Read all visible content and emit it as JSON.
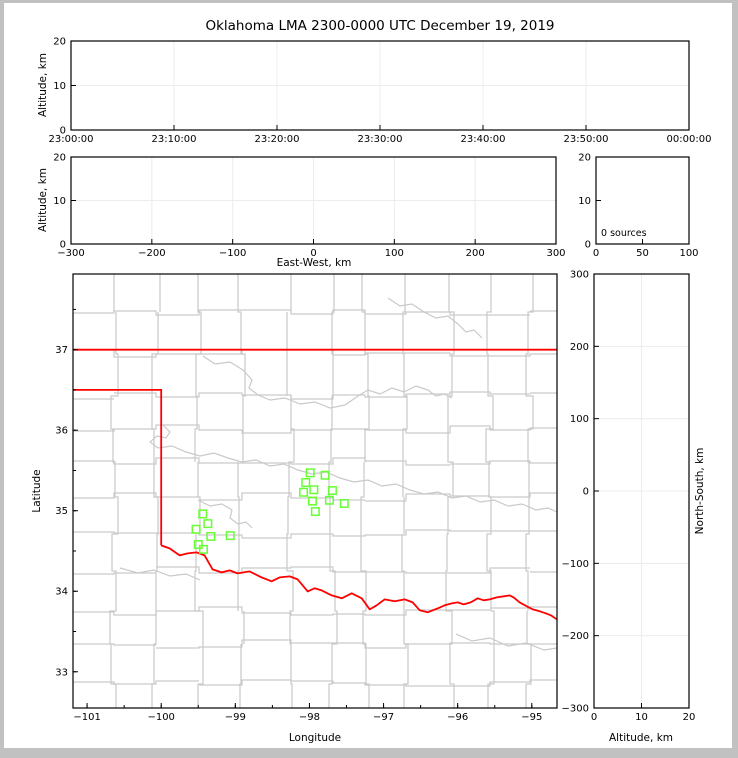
{
  "figure": {
    "title": "Oklahoma LMA 2300-0000 UTC December 19, 2019",
    "frame_color": "#c1c1c1",
    "background": "#ffffff"
  },
  "colors": {
    "state_border": "#ff0000",
    "source_marker": "#66ff33",
    "county_lines": "#c9c9c9",
    "gridlines": "#ececec",
    "axis": "#000000"
  },
  "chart_data": [
    {
      "id": "time_height",
      "type": "scatter",
      "description": "altitude vs time panel (empty, no sources)",
      "ylabel": "Altitude, km",
      "x_tick_labels": [
        "23:00:00",
        "23:10:00",
        "23:20:00",
        "23:30:00",
        "23:40:00",
        "23:50:00",
        "00:00:00"
      ],
      "y_ticks": [
        0,
        10,
        20
      ],
      "ylim": [
        0,
        20
      ],
      "grid": true,
      "points": []
    },
    {
      "id": "eastwest_height",
      "type": "scatter",
      "description": "altitude vs east-west distance panel (empty)",
      "xlabel": "East-West, km",
      "ylabel": "Altitude, km",
      "x_ticks": [
        -300,
        -200,
        -100,
        0,
        100,
        200,
        300
      ],
      "y_ticks": [
        0,
        10,
        20
      ],
      "xlim": [
        -300,
        300
      ],
      "ylim": [
        0,
        20
      ],
      "grid": true,
      "points": []
    },
    {
      "id": "source_histogram",
      "type": "histogram",
      "description": "altitude histogram panel",
      "annotation": "0 sources",
      "x_ticks": [
        0,
        50,
        100
      ],
      "y_ticks": [
        0,
        10,
        20
      ],
      "xlim": [
        0,
        100
      ],
      "ylim": [
        0,
        20
      ],
      "grid": false,
      "values": []
    },
    {
      "id": "plan_view_map",
      "type": "scatter",
      "description": "plan view map of Oklahoma with county borders, red state border and green LMA sources",
      "xlabel": "Longitude",
      "ylabel": "Latitude",
      "x_ticks": [
        -101,
        -100,
        -99,
        -98,
        -97,
        -96,
        -95
      ],
      "y_ticks": [
        33,
        34,
        35,
        36,
        37
      ],
      "xlim": [
        -101.19,
        -94.66
      ],
      "ylim": [
        32.55,
        37.94
      ],
      "minor_tick_step": 0.5,
      "sources_lonlat": [
        [
          -97.99,
          35.47
        ],
        [
          -97.79,
          35.44
        ],
        [
          -98.05,
          35.35
        ],
        [
          -97.94,
          35.26
        ],
        [
          -98.08,
          35.23
        ],
        [
          -97.69,
          35.25
        ],
        [
          -97.73,
          35.13
        ],
        [
          -97.96,
          35.12
        ],
        [
          -97.53,
          35.09
        ],
        [
          -97.92,
          34.99
        ],
        [
          -99.44,
          34.96
        ],
        [
          -99.37,
          34.84
        ],
        [
          -99.53,
          34.77
        ],
        [
          -99.33,
          34.68
        ],
        [
          -99.07,
          34.69
        ],
        [
          -99.5,
          34.58
        ],
        [
          -99.43,
          34.52
        ]
      ],
      "state_border": {
        "kansas_line": [
          [
            -101.19,
            37.0
          ],
          [
            -94.66,
            37.0
          ]
        ],
        "panhandle": [
          [
            -101.19,
            36.5
          ],
          [
            -100.0,
            36.5
          ],
          [
            -100.0,
            34.569
          ]
        ],
        "red_river": [
          [
            -100.0,
            34.569
          ],
          [
            -99.887,
            34.532
          ],
          [
            -99.752,
            34.445
          ],
          [
            -99.644,
            34.47
          ],
          [
            -99.522,
            34.482
          ],
          [
            -99.414,
            34.445
          ],
          [
            -99.306,
            34.271
          ],
          [
            -99.185,
            34.234
          ],
          [
            -99.077,
            34.259
          ],
          [
            -98.969,
            34.222
          ],
          [
            -98.807,
            34.246
          ],
          [
            -98.645,
            34.172
          ],
          [
            -98.51,
            34.123
          ],
          [
            -98.402,
            34.172
          ],
          [
            -98.267,
            34.185
          ],
          [
            -98.159,
            34.147
          ],
          [
            -98.024,
            33.998
          ],
          [
            -97.93,
            34.036
          ],
          [
            -97.835,
            34.011
          ],
          [
            -97.7,
            33.949
          ],
          [
            -97.565,
            33.912
          ],
          [
            -97.43,
            33.974
          ],
          [
            -97.295,
            33.912
          ],
          [
            -97.187,
            33.775
          ],
          [
            -97.093,
            33.825
          ],
          [
            -96.985,
            33.899
          ],
          [
            -96.85,
            33.875
          ],
          [
            -96.715,
            33.899
          ],
          [
            -96.607,
            33.862
          ],
          [
            -96.513,
            33.763
          ],
          [
            -96.405,
            33.738
          ],
          [
            -96.337,
            33.763
          ],
          [
            -96.27,
            33.787
          ],
          [
            -96.175,
            33.825
          ],
          [
            -96.081,
            33.849
          ],
          [
            -96.0,
            33.862
          ],
          [
            -95.919,
            33.837
          ],
          [
            -95.824,
            33.862
          ],
          [
            -95.73,
            33.912
          ],
          [
            -95.649,
            33.887
          ],
          [
            -95.568,
            33.899
          ],
          [
            -95.473,
            33.924
          ],
          [
            -95.379,
            33.937
          ],
          [
            -95.298,
            33.949
          ],
          [
            -95.244,
            33.924
          ],
          [
            -95.163,
            33.862
          ],
          [
            -95.068,
            33.813
          ],
          [
            -94.987,
            33.775
          ],
          [
            -94.893,
            33.751
          ],
          [
            -94.812,
            33.726
          ],
          [
            -94.744,
            33.701
          ],
          [
            -94.663,
            33.652
          ]
        ]
      }
    },
    {
      "id": "northsouth_height",
      "type": "scatter",
      "description": "north-south distance vs altitude panel (empty)",
      "xlabel": "Altitude, km",
      "ylabel": "North-South, km",
      "x_ticks": [
        0,
        10,
        20
      ],
      "y_ticks": [
        -300,
        -200,
        -100,
        0,
        100,
        200,
        300
      ],
      "xlim": [
        0,
        20
      ],
      "ylim": [
        -300,
        300
      ],
      "grid": true,
      "points": []
    }
  ]
}
